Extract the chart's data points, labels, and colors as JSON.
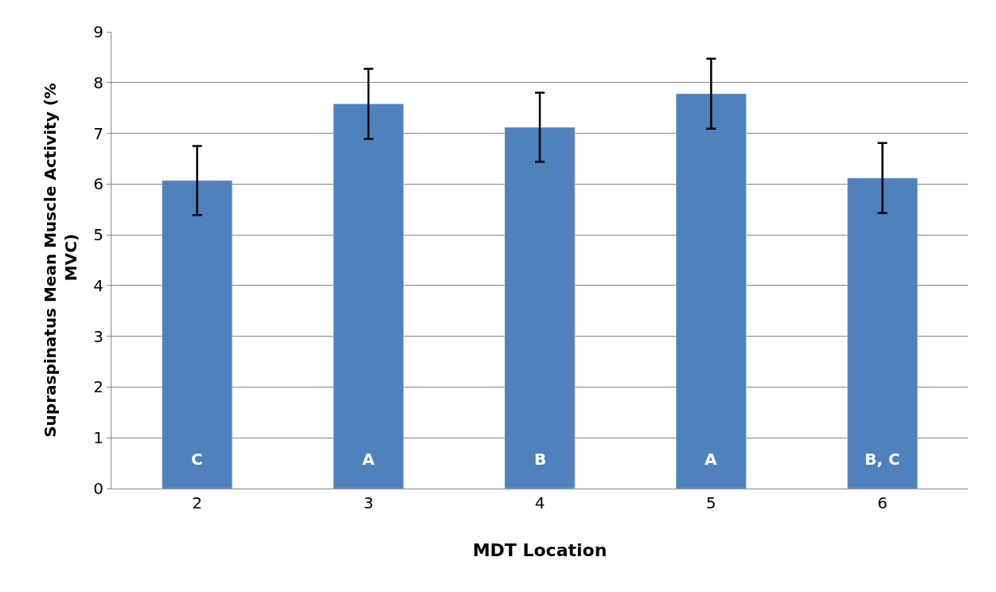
{
  "chart_data": {
    "type": "bar",
    "xlabel": "MDT Location",
    "ylabel": "Supraspinatus Mean Muscle Activity (% MVC)",
    "categories": [
      "2",
      "3",
      "4",
      "5",
      "6"
    ],
    "values": [
      6.07,
      7.58,
      7.12,
      7.78,
      6.12
    ],
    "errors": [
      0.68,
      0.69,
      0.68,
      0.69,
      0.69
    ],
    "color": "#4f81bd",
    "ylim": [
      0,
      9
    ],
    "yticks": [
      0,
      1,
      2,
      3,
      4,
      5,
      6,
      7,
      8,
      9
    ],
    "grid": "y",
    "annotations": [
      "C",
      "A",
      "B",
      "A",
      "B, C"
    ]
  }
}
